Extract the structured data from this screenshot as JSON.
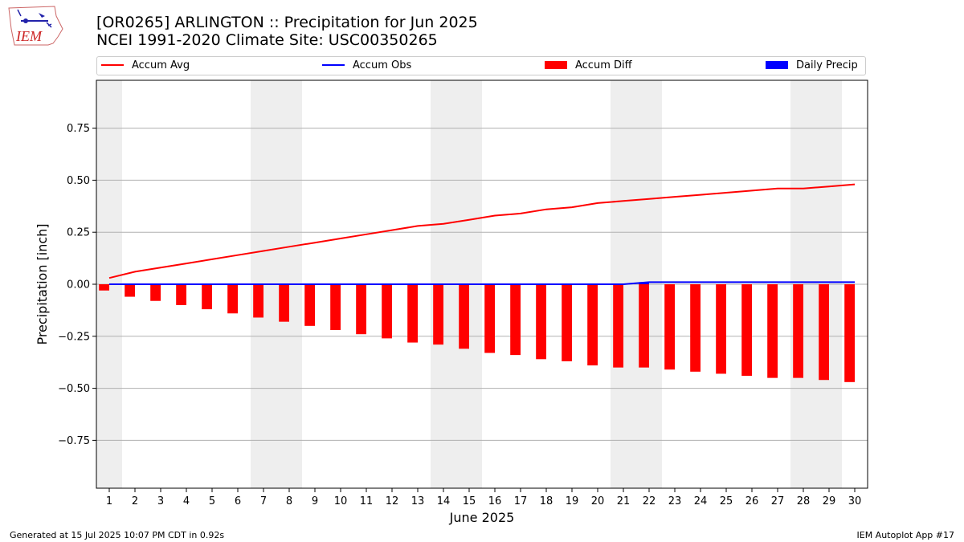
{
  "header": {
    "title_line1": "[OR0265] ARLINGTON :: Precipitation for Jun 2025",
    "title_line2": "NCEI 1991-2020 Climate Site: USC00350265"
  },
  "logo": {
    "text": "IEM"
  },
  "footer": {
    "left": "Generated at 15 Jul 2025 10:07 PM CDT in 0.92s",
    "right": "IEM Autoplot App #17"
  },
  "colors": {
    "avg": "#ff0000",
    "obs": "#0000ff",
    "diff": "#ff0000",
    "daily": "#0000ff",
    "weekend": "#eeeeee",
    "grid": "#b0b0b0"
  },
  "chart_data": {
    "type": "bar",
    "xlabel": "June 2025",
    "ylabel": "Precipitation [inch]",
    "ylim": [
      -0.98,
      0.98
    ],
    "yticks": [
      -0.75,
      -0.5,
      -0.25,
      0.0,
      0.25,
      0.5,
      0.75
    ],
    "ytick_labels": [
      "−0.75",
      "−0.50",
      "−0.25",
      "0.00",
      "0.25",
      "0.50",
      "0.75"
    ],
    "grid": "horizontal",
    "legend_position": "top",
    "x": [
      1,
      2,
      3,
      4,
      5,
      6,
      7,
      8,
      9,
      10,
      11,
      12,
      13,
      14,
      15,
      16,
      17,
      18,
      19,
      20,
      21,
      22,
      23,
      24,
      25,
      26,
      27,
      28,
      29,
      30
    ],
    "shaded_days": [
      1,
      7,
      8,
      14,
      15,
      21,
      22,
      28,
      29
    ],
    "series": [
      {
        "name": "Accum Avg",
        "kind": "line",
        "values": [
          0.03,
          0.06,
          0.08,
          0.1,
          0.12,
          0.14,
          0.16,
          0.18,
          0.2,
          0.22,
          0.24,
          0.26,
          0.28,
          0.29,
          0.31,
          0.33,
          0.34,
          0.36,
          0.37,
          0.39,
          0.4,
          0.41,
          0.42,
          0.43,
          0.44,
          0.45,
          0.46,
          0.46,
          0.47,
          0.48
        ]
      },
      {
        "name": "Accum Obs",
        "kind": "line",
        "values": [
          0,
          0,
          0,
          0,
          0,
          0,
          0,
          0,
          0,
          0,
          0,
          0,
          0,
          0,
          0,
          0,
          0,
          0,
          0,
          0,
          0,
          0.01,
          0.01,
          0.01,
          0.01,
          0.01,
          0.01,
          0.01,
          0.01,
          0.01
        ]
      },
      {
        "name": "Accum Diff",
        "kind": "bar",
        "values": [
          -0.03,
          -0.06,
          -0.08,
          -0.1,
          -0.12,
          -0.14,
          -0.16,
          -0.18,
          -0.2,
          -0.22,
          -0.24,
          -0.26,
          -0.28,
          -0.29,
          -0.31,
          -0.33,
          -0.34,
          -0.36,
          -0.37,
          -0.39,
          -0.4,
          -0.4,
          -0.41,
          -0.42,
          -0.43,
          -0.44,
          -0.45,
          -0.45,
          -0.46,
          -0.47
        ]
      },
      {
        "name": "Daily Precip",
        "kind": "bar",
        "values": [
          0,
          0,
          0,
          0,
          0,
          0,
          0,
          0,
          0,
          0,
          0,
          0,
          0,
          0,
          0,
          0,
          0,
          0,
          0,
          0,
          0,
          0.01,
          0,
          0,
          0,
          0,
          0,
          0,
          0,
          0
        ]
      }
    ]
  }
}
